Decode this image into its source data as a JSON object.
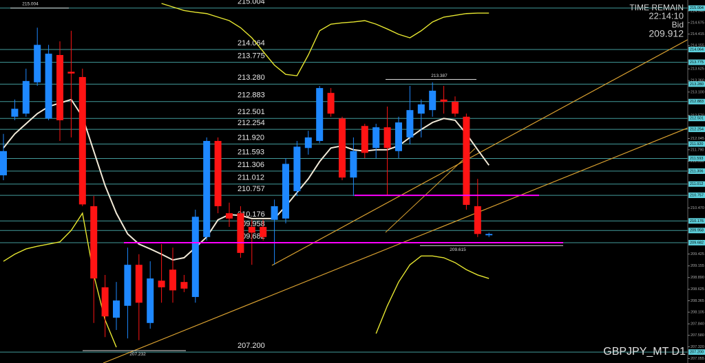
{
  "chart_data": {
    "type": "candlestick",
    "symbol": "GBPJPY_MT D1",
    "time_remain_label": "TIME REMAIN",
    "time_remain": "22:14:10",
    "bid_label": "Bid",
    "bid": 209.912,
    "open": [
      211.21,
      212.54,
      212.61,
      213.32,
      212.5,
      213.94,
      213.56,
      213.44,
      210.51,
      208.67,
      207.98,
      208.25,
      209.18,
      207.86,
      208.82,
      209.07,
      208.79,
      208.45,
      209.81,
      211.99,
      210.35,
      210.35,
      210.04,
      210.04,
      210.2,
      210.23,
      210.85,
      211.83,
      211.99,
      213.08,
      212.5,
      211.16,
      212.33,
      211.83,
      212.3,
      211.76,
      212.07,
      212.61,
      212.69,
      212.93,
      212.88,
      212.54,
      210.51,
      209.85
    ],
    "high": [
      212.15,
      212.93,
      213.63,
      214.56,
      214.17,
      214.25,
      214.49,
      213.63,
      210.74,
      208.95,
      208.79,
      209.57,
      209.42,
      209.26,
      209.65,
      209.57,
      208.95,
      210.43,
      212.07,
      212.07,
      210.59,
      210.51,
      210.2,
      210.2,
      210.66,
      211.6,
      211.99,
      212.22,
      213.24,
      213.19,
      212.54,
      212.07,
      212.38,
      212.38,
      212.77,
      212.54,
      213.24,
      212.93,
      213.32,
      213.24,
      213.0,
      212.61,
      211.13,
      209.91
    ],
    "low": [
      211.1,
      212.46,
      212.54,
      213.24,
      212.46,
      211.99,
      212.07,
      210.51,
      207.86,
      207.54,
      207.7,
      207.51,
      207.47,
      207.73,
      208.32,
      208.32,
      208.56,
      208.32,
      209.73,
      210.35,
      210.04,
      209.34,
      209.18,
      209.73,
      209.18,
      210.12,
      210.74,
      211.68,
      211.94,
      212.54,
      211.1,
      210.74,
      211.6,
      211.6,
      210.77,
      211.6,
      211.91,
      212.07,
      212.54,
      212.61,
      212.54,
      210.43,
      209.81,
      209.81
    ],
    "close": [
      211.76,
      212.72,
      213.35,
      214.17,
      213.97,
      212.46,
      213.52,
      210.55,
      208.87,
      208.01,
      208.37,
      209.18,
      208.32,
      208.87,
      208.67,
      208.6,
      208.64,
      210.27,
      211.99,
      210.51,
      210.23,
      209.45,
      209.91,
      209.81,
      210.51,
      211.47,
      211.86,
      212.07,
      213.19,
      212.61,
      211.16,
      211.76,
      211.72,
      212.3,
      211.83,
      212.41,
      212.69,
      212.82,
      213.13,
      212.88,
      212.61,
      210.54,
      209.88,
      209.88
    ],
    "up_color": "#1e88ff",
    "down_color": "#ff1414",
    "series": [
      {
        "color": "#e6e630",
        "values": [
          null,
          null,
          null,
          null,
          null,
          null,
          null,
          null,
          null,
          null,
          null,
          null,
          null,
          null,
          215.11,
          215.03,
          214.95,
          214.91,
          214.88,
          214.8,
          214.72,
          214.56,
          214.33,
          214.02,
          213.71,
          213.5,
          213.47,
          213.94,
          214.49,
          214.64,
          214.67,
          214.69,
          214.72,
          214.64,
          214.53,
          214.41,
          214.33,
          214.49,
          214.69,
          214.8,
          214.84,
          214.88,
          214.89,
          214.89
        ]
      },
      {
        "color": "#e6e630",
        "values": [
          209.26,
          209.42,
          209.54,
          209.6,
          209.65,
          209.7,
          209.96,
          210.35,
          208.95,
          207.93,
          207.31,
          null,
          null,
          null,
          null,
          null,
          null,
          null,
          null,
          null,
          null,
          null,
          null,
          null,
          null,
          null,
          null,
          null,
          null,
          null,
          null,
          null,
          null,
          207.62,
          208.25,
          208.79,
          209.18,
          209.38,
          209.38,
          209.34,
          209.23,
          209.07,
          208.95,
          208.87
        ]
      },
      {
        "color": "#f2ead8",
        "values": [
          211.83,
          212.15,
          212.38,
          212.61,
          212.77,
          212.85,
          212.93,
          212.54,
          211.76,
          210.98,
          210.35,
          209.88,
          209.65,
          209.54,
          209.42,
          209.29,
          209.34,
          209.57,
          209.81,
          210.2,
          210.32,
          210.3,
          210.23,
          210.23,
          210.23,
          210.51,
          210.82,
          211.13,
          211.52,
          211.83,
          211.88,
          211.79,
          211.76,
          211.79,
          211.79,
          211.88,
          212.07,
          212.25,
          212.41,
          212.5,
          212.46,
          212.15,
          211.79,
          211.44
        ]
      }
    ],
    "levels": [
      215.004,
      214.064,
      213.775,
      {
        "value": 213.28,
        "label": "213.280"
      },
      212.883,
      212.501,
      212.254,
      {
        "value": 211.92,
        "label": "211.920"
      },
      211.593,
      211.306,
      211.012,
      210.757,
      210.176,
      209.958,
      209.682,
      {
        "value": 207.2,
        "label": "207.200"
      }
    ],
    "level_color": "#4fb8b8",
    "marked_lines": [
      {
        "value": 209.682,
        "color": "#ff00ff"
      },
      {
        "value": 210.757,
        "color": "#ff00ff"
      }
    ],
    "price_markers": [
      215.004,
      213.387,
      209.615,
      207.232
    ],
    "ylim": [
      206.952,
      215.188
    ],
    "yticks": [
      207.055,
      {
        "value": 207.32,
        "label": "207.320"
      },
      {
        "value": 207.58,
        "label": "207.580"
      },
      {
        "value": 207.84,
        "label": "207.840"
      },
      208.105,
      208.365,
      208.625,
      {
        "value": 208.89,
        "label": "208.890"
      },
      209.155,
      209.425,
      {
        "value": 210.47,
        "label": "210.470"
      },
      211.265,
      {
        "value": 211.53,
        "label": "211.530"
      },
      {
        "value": 211.79,
        "label": "211.790"
      },
      212.045,
      {
        "value": 212.57,
        "label": "212.570"
      },
      {
        "value": 213.1,
        "label": "213.100"
      },
      {
        "value": 213.36,
        "label": "213.360"
      },
      213.625,
      214.155,
      214.415,
      214.675,
      {
        "value": 214.94,
        "label": "214.940"
      }
    ]
  }
}
